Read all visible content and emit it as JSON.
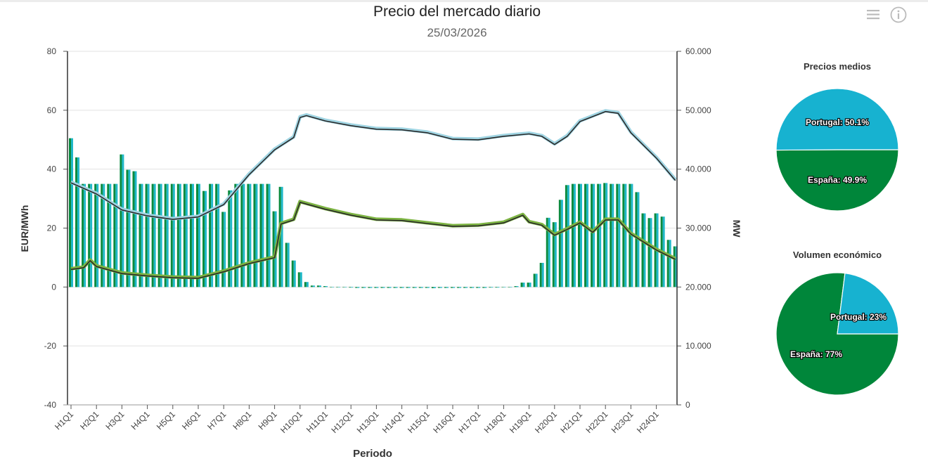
{
  "header": {
    "title": "Precio del mercado diario",
    "date": "25/03/2026",
    "menu_icon": "hamburger-menu-icon",
    "info_icon": "info-icon"
  },
  "colors": {
    "spain_bar": "#0b8a3e",
    "portugal_bar": "#1fb8c8",
    "upper_line": "#9fd4e2",
    "lower_line": "#7cb342",
    "line_core": "#2a2a2a",
    "pie_portugal": "#17b2d0",
    "pie_spain": "#00863a"
  },
  "chart_data": [
    {
      "type": "bar+line",
      "xlabel": "Periodo",
      "ylabel": "EUR/MWh",
      "y2label": "MW",
      "ylim": [
        -40,
        80
      ],
      "y2lim": [
        0,
        60000
      ],
      "yticks": [
        "80",
        "60",
        "40",
        "20",
        "0",
        "-20",
        "-40"
      ],
      "y2ticks": [
        "60.000",
        "50.000",
        "40.000",
        "30.000",
        "20.000",
        "10.000",
        "0"
      ],
      "xticks": [
        "H1Q1",
        "H2Q1",
        "H3Q1",
        "H4Q1",
        "H5Q1",
        "H6Q1",
        "H7Q1",
        "H8Q1",
        "H9Q1",
        "H10Q1",
        "H11Q1",
        "H12Q1",
        "H13Q1",
        "H14Q1",
        "H15Q1",
        "H16Q1",
        "H17Q1",
        "H18Q1",
        "H19Q1",
        "H20Q1",
        "H21Q1",
        "H22Q1",
        "H23Q1",
        "H24Q1"
      ],
      "grid": true,
      "bar_series": [
        {
          "axis": "left",
          "color_key": "spain_bar",
          "values": [
            50.5,
            44,
            35,
            35,
            35,
            35,
            35,
            35,
            45,
            39.8,
            39.3,
            35,
            35,
            35,
            35,
            35,
            35,
            35,
            35,
            35,
            35,
            32.6,
            35,
            35,
            25.5,
            32.8,
            35,
            35,
            35,
            35,
            35,
            35,
            25.7,
            34,
            15,
            9,
            5,
            1.7,
            0.5,
            0.5,
            0.3,
            0,
            0,
            0,
            -0.2,
            -0.3,
            -0.3,
            -0.3,
            -0.3,
            -0.3,
            -0.3,
            -0.3,
            -0.3,
            -0.3,
            -0.3,
            -0.3,
            -0.3,
            -0.4,
            -0.3,
            -0.3,
            -0.3,
            -0.3,
            -0.3,
            -0.3,
            -0.3,
            -0.3,
            -0.2,
            -0.2,
            0,
            0,
            0.3,
            1.5,
            1.5,
            4.5,
            8.2,
            23.5,
            22,
            29.6,
            34.6,
            35,
            35,
            35,
            35,
            35,
            35.3,
            35,
            35,
            35,
            35,
            32.2,
            25,
            23.4,
            25,
            23.9,
            16,
            13.8
          ]
        },
        {
          "axis": "left",
          "color_key": "portugal_bar",
          "values": [
            50.5,
            44,
            35,
            35,
            35,
            35,
            35,
            35,
            45,
            39.8,
            39.3,
            35,
            35,
            35,
            35,
            35,
            35,
            35,
            35,
            35,
            35,
            32.6,
            35,
            35,
            25.5,
            32.8,
            35,
            35,
            35,
            35,
            35,
            35,
            25.7,
            34,
            15,
            9,
            5,
            1.7,
            0.5,
            0.5,
            0.3,
            0,
            0,
            0,
            -0.2,
            -0.3,
            -0.3,
            -0.3,
            -0.3,
            -0.3,
            -0.3,
            -0.3,
            -0.3,
            -0.3,
            -0.3,
            -0.3,
            -0.3,
            -0.4,
            -0.3,
            -0.3,
            -0.3,
            -0.3,
            -0.3,
            -0.3,
            -0.3,
            -0.3,
            -0.2,
            -0.2,
            0,
            0,
            0.3,
            1.5,
            1.5,
            4.5,
            8.2,
            23.5,
            22,
            29.6,
            34.6,
            35,
            35,
            35,
            35,
            35,
            35.3,
            35,
            35,
            35,
            35,
            32.2,
            25,
            23.4,
            25,
            23.9,
            16,
            13.8
          ]
        }
      ],
      "line_series": [
        {
          "axis": "right",
          "color_key": "upper_line",
          "points": [
            [
              "H1Q1",
              37800
            ],
            [
              "H2Q1",
              35900
            ],
            [
              "H3Q1",
              33200
            ],
            [
              "H4Q1",
              32200
            ],
            [
              "H5Q1",
              31600
            ],
            [
              "H6Q1",
              32000
            ],
            [
              "H7Q1",
              34100
            ],
            [
              "H8Q1",
              39200
            ],
            [
              "H9Q1",
              43400
            ],
            [
              "H9Q4",
              45500
            ],
            [
              "H10Q1",
              48900
            ],
            [
              "H10Q2",
              49200
            ],
            [
              "H11Q1",
              48300
            ],
            [
              "H12Q1",
              47500
            ],
            [
              "H13Q1",
              46900
            ],
            [
              "H14Q1",
              46800
            ],
            [
              "H15Q1",
              46300
            ],
            [
              "H16Q1",
              45200
            ],
            [
              "H17Q1",
              45100
            ],
            [
              "H18Q1",
              45700
            ],
            [
              "H19Q1",
              46100
            ],
            [
              "H19Q3",
              45700
            ],
            [
              "H20Q1",
              44300
            ],
            [
              "H20Q3",
              45700
            ],
            [
              "H21Q1",
              48200
            ],
            [
              "H22Q1",
              49900
            ],
            [
              "H22Q3",
              49600
            ],
            [
              "H23Q1",
              46300
            ],
            [
              "H24Q1",
              42000
            ],
            [
              "H24Q4",
              38200
            ]
          ]
        },
        {
          "axis": "right",
          "color_key": "lower_line",
          "points": [
            [
              "H1Q1",
              23100
            ],
            [
              "H1Q3",
              23400
            ],
            [
              "H1Q4",
              24600
            ],
            [
              "H2Q1",
              23600
            ],
            [
              "H3Q1",
              22400
            ],
            [
              "H4Q1",
              22000
            ],
            [
              "H5Q1",
              21700
            ],
            [
              "H6Q1",
              21600
            ],
            [
              "H7Q1",
              22700
            ],
            [
              "H8Q1",
              24100
            ],
            [
              "H9Q1",
              25100
            ],
            [
              "H9Q2",
              30800
            ],
            [
              "H9Q4",
              31500
            ],
            [
              "H10Q1",
              34500
            ],
            [
              "H11Q1",
              33300
            ],
            [
              "H12Q1",
              32300
            ],
            [
              "H13Q1",
              31500
            ],
            [
              "H14Q1",
              31400
            ],
            [
              "H15Q1",
              30900
            ],
            [
              "H16Q1",
              30400
            ],
            [
              "H17Q1",
              30500
            ],
            [
              "H18Q1",
              31000
            ],
            [
              "H18Q4",
              32300
            ],
            [
              "H19Q1",
              31100
            ],
            [
              "H19Q3",
              30600
            ],
            [
              "H20Q1",
              28900
            ],
            [
              "H20Q3",
              29900
            ],
            [
              "H21Q1",
              31000
            ],
            [
              "H21Q3",
              29400
            ],
            [
              "H22Q1",
              31500
            ],
            [
              "H22Q3",
              31500
            ],
            [
              "H23Q1",
              29100
            ],
            [
              "H24Q1",
              26400
            ],
            [
              "H24Q4",
              24800
            ]
          ]
        }
      ]
    },
    {
      "type": "pie",
      "title": "Precios medios",
      "slices": [
        {
          "label": "España: 49.9%",
          "name": "España",
          "value": 49.9,
          "color_key": "pie_spain"
        },
        {
          "label": "Portugal: 50.1%",
          "name": "Portugal",
          "value": 50.1,
          "color_key": "pie_portugal"
        }
      ]
    },
    {
      "type": "pie",
      "title": "Volumen económico",
      "slices": [
        {
          "label": "España: 77%",
          "name": "España",
          "value": 77,
          "color_key": "pie_spain"
        },
        {
          "label": "Portugal: 23%",
          "name": "Portugal",
          "value": 23,
          "color_key": "pie_portugal"
        }
      ]
    }
  ]
}
